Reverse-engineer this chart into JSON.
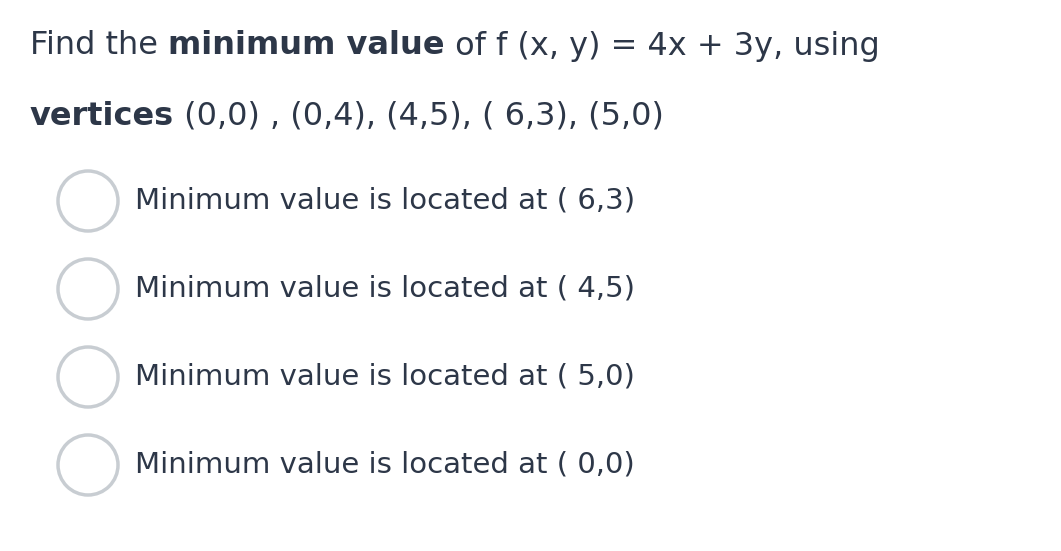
{
  "background_color": "#ffffff",
  "text_color": "#2d3748",
  "circle_edge_color": "#c8cdd2",
  "title_fontsize": 23,
  "option_fontsize": 21,
  "fig_width": 10.61,
  "fig_height": 5.51,
  "options": [
    "Minimum value is located at ( 6,3)",
    "Minimum value is located at ( 4,5)",
    "Minimum value is located at ( 5,0)",
    "Minimum value is located at ( 0,0)"
  ]
}
